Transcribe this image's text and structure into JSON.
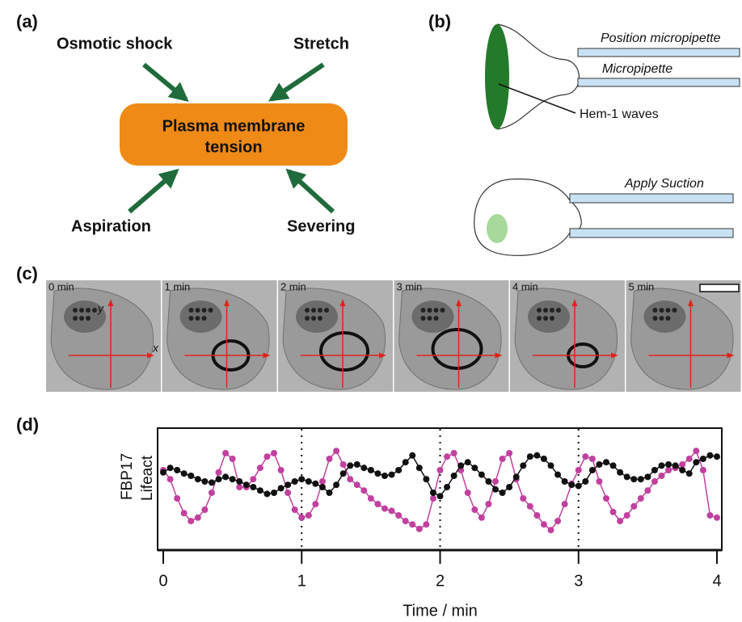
{
  "panel_a": {
    "label": "(a)",
    "center": [
      "Plasma membrane",
      "tension"
    ],
    "inputs": [
      "Osmotic shock",
      "Stretch",
      "Aspiration",
      "Severing"
    ]
  },
  "panel_b": {
    "label": "(b)",
    "position_micropipette": "Position micropipette",
    "micropipette": "Micropipette",
    "hem1": "Hem-1 waves",
    "apply_suction": "Apply Suction"
  },
  "panel_c": {
    "label": "(c)",
    "frames": [
      "0 min",
      "1 min",
      "2 min",
      "3 min",
      "4 min",
      "5 min"
    ],
    "y_axis": "y",
    "x_axis": "x"
  },
  "panel_d": {
    "label": "(d)"
  },
  "chart_data": {
    "type": "line",
    "x_label": "Time / min",
    "x": [
      0,
      0.05,
      0.1,
      0.15,
      0.2,
      0.25,
      0.3,
      0.35,
      0.4,
      0.45,
      0.5,
      0.55,
      0.6,
      0.65,
      0.7,
      0.75,
      0.8,
      0.85,
      0.9,
      0.95,
      1,
      1.05,
      1.1,
      1.15,
      1.2,
      1.25,
      1.3,
      1.35,
      1.4,
      1.45,
      1.5,
      1.55,
      1.6,
      1.65,
      1.7,
      1.75,
      1.8,
      1.85,
      1.9,
      1.95,
      2,
      2.05,
      2.1,
      2.15,
      2.2,
      2.25,
      2.3,
      2.35,
      2.4,
      2.45,
      2.5,
      2.55,
      2.6,
      2.65,
      2.7,
      2.75,
      2.8,
      2.85,
      2.9,
      2.95,
      3,
      3.05,
      3.1,
      3.15,
      3.2,
      3.25,
      3.3,
      3.35,
      3.4,
      3.45,
      3.5,
      3.55,
      3.6,
      3.65,
      3.7,
      3.75,
      3.8,
      3.85,
      3.9,
      3.95,
      4
    ],
    "series": [
      {
        "name": "FBP17",
        "color": "#c2409f",
        "values": [
          0.7,
          0.62,
          0.45,
          0.32,
          0.25,
          0.28,
          0.35,
          0.5,
          0.68,
          0.85,
          0.8,
          0.55,
          0.55,
          0.62,
          0.72,
          0.82,
          0.85,
          0.7,
          0.5,
          0.35,
          0.28,
          0.3,
          0.4,
          0.6,
          0.8,
          0.87,
          0.75,
          0.62,
          0.57,
          0.52,
          0.45,
          0.4,
          0.36,
          0.34,
          0.3,
          0.25,
          0.22,
          0.18,
          0.22,
          0.45,
          0.7,
          0.82,
          0.85,
          0.7,
          0.5,
          0.35,
          0.28,
          0.4,
          0.6,
          0.8,
          0.85,
          0.62,
          0.45,
          0.38,
          0.3,
          0.22,
          0.17,
          0.25,
          0.4,
          0.58,
          0.7,
          0.82,
          0.8,
          0.6,
          0.45,
          0.33,
          0.25,
          0.3,
          0.38,
          0.45,
          0.52,
          0.6,
          0.65,
          0.7,
          0.72,
          0.75,
          0.8,
          0.87,
          0.7,
          0.3,
          0.28
        ]
      },
      {
        "name": "Lifeact",
        "color": "#111111",
        "values": [
          0.68,
          0.72,
          0.7,
          0.67,
          0.65,
          0.62,
          0.6,
          0.59,
          0.62,
          0.64,
          0.62,
          0.6,
          0.57,
          0.55,
          0.52,
          0.49,
          0.5,
          0.54,
          0.57,
          0.6,
          0.62,
          0.6,
          0.58,
          0.55,
          0.5,
          0.57,
          0.67,
          0.74,
          0.75,
          0.72,
          0.7,
          0.67,
          0.65,
          0.66,
          0.7,
          0.77,
          0.83,
          0.72,
          0.62,
          0.5,
          0.47,
          0.55,
          0.65,
          0.74,
          0.77,
          0.72,
          0.66,
          0.6,
          0.53,
          0.5,
          0.55,
          0.64,
          0.74,
          0.82,
          0.83,
          0.8,
          0.74,
          0.66,
          0.6,
          0.57,
          0.56,
          0.6,
          0.7,
          0.75,
          0.77,
          0.74,
          0.68,
          0.64,
          0.62,
          0.62,
          0.64,
          0.7,
          0.74,
          0.75,
          0.74,
          0.7,
          0.67,
          0.77,
          0.8,
          0.83,
          0.82
        ]
      }
    ],
    "xlim": [
      0,
      4
    ],
    "xticks": [
      0,
      1,
      2,
      3,
      4
    ],
    "ylim": [
      0,
      1
    ],
    "grid": true
  }
}
